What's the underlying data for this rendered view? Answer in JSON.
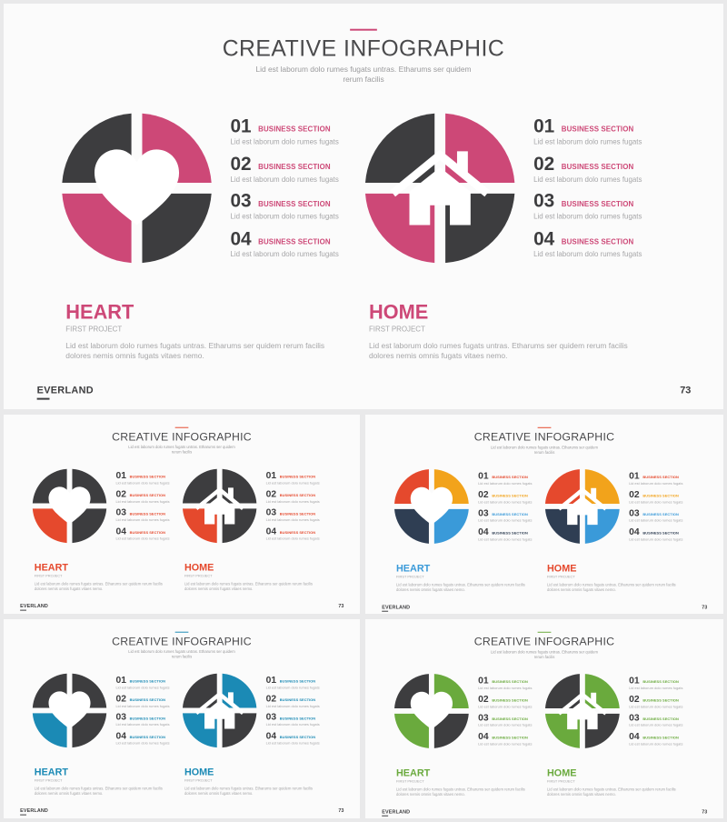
{
  "slide": {
    "title": "CREATIVE INFOGRAPHIC",
    "subtitle": "Lid est laborum dolo rumes fugats untras. Etharums ser quidem rerum facilis",
    "items": [
      {
        "num": "01",
        "label": "BUSINESS SECTION",
        "desc": "Lid est laborum dolo rumes fugats"
      },
      {
        "num": "02",
        "label": "BUSINESS SECTION",
        "desc": "Lid est laborum dolo rumes fugats"
      },
      {
        "num": "03",
        "label": "BUSINESS SECTION",
        "desc": "Lid est laborum dolo rumes fugats"
      },
      {
        "num": "04",
        "label": "BUSINESS SECTION",
        "desc": "Lid est laborum dolo rumes fugats"
      }
    ],
    "heart": {
      "title": "HEART",
      "subtitle": "FIRST PROJECT",
      "desc": "Lid est laborum dolo rumes fugats untras. Etharums ser quidem rerum facilis dolores nemis omnis fugats vitaes nemo.",
      "icon": "heart-icon"
    },
    "home": {
      "title": "HOME",
      "subtitle": "FIRST PROJECT",
      "desc": "Lid est laborum dolo rumes fugats untras. Etharums ser quidem rerum facilis dolores nemis omnis fugats vitaes nemo.",
      "icon": "house-icon"
    },
    "brand": "EVERLAND",
    "page": "73"
  },
  "variants": [
    {
      "name": "pink",
      "accent": "#cd4877",
      "heart_colors": [
        "#3d3d3f",
        "#cd4877",
        "#cd4877",
        "#3d3d3f"
      ],
      "home_colors": [
        "#3d3d3f",
        "#cd4877",
        "#cd4877",
        "#3d3d3f"
      ],
      "label_colors": [
        "#cd4877",
        "#cd4877",
        "#cd4877",
        "#cd4877"
      ],
      "heart_title_color": "#cd4877",
      "home_title_color": "#cd4877"
    },
    {
      "name": "red",
      "accent": "#e5492d",
      "heart_colors": [
        "#3d3d3f",
        "#3d3d3f",
        "#e5492d",
        "#3d3d3f"
      ],
      "home_colors": [
        "#3d3d3f",
        "#3d3d3f",
        "#e5492d",
        "#3d3d3f"
      ],
      "label_colors": [
        "#e5492d",
        "#e5492d",
        "#e5492d",
        "#e5492d"
      ],
      "heart_title_color": "#e5492d",
      "home_title_color": "#e5492d"
    },
    {
      "name": "multicolor",
      "accent": "#e5492d",
      "heart_colors": [
        "#e5492d",
        "#f2a31b",
        "#2f3e53",
        "#3a9ad9"
      ],
      "home_colors": [
        "#e5492d",
        "#f2a31b",
        "#2f3e53",
        "#3a9ad9"
      ],
      "label_colors": [
        "#e5492d",
        "#f2a31b",
        "#3a9ad9",
        "#2f3e53"
      ],
      "heart_title_color": "#3a9ad9",
      "home_title_color": "#e5492d"
    },
    {
      "name": "blue",
      "accent": "#1b8ab5",
      "heart_colors": [
        "#3d3d3f",
        "#3d3d3f",
        "#1b8ab5",
        "#3d3d3f"
      ],
      "home_colors": [
        "#3d3d3f",
        "#1b8ab5",
        "#1b8ab5",
        "#3d3d3f"
      ],
      "label_colors": [
        "#1b8ab5",
        "#1b8ab5",
        "#1b8ab5",
        "#1b8ab5"
      ],
      "heart_title_color": "#1b8ab5",
      "home_title_color": "#1b8ab5"
    },
    {
      "name": "green",
      "accent": "#6aaa3d",
      "heart_colors": [
        "#3d3d3f",
        "#6aaa3d",
        "#6aaa3d",
        "#3d3d3f"
      ],
      "home_colors": [
        "#3d3d3f",
        "#6aaa3d",
        "#6aaa3d",
        "#3d3d3f"
      ],
      "label_colors": [
        "#6aaa3d",
        "#6aaa3d",
        "#6aaa3d",
        "#6aaa3d"
      ],
      "heart_title_color": "#6aaa3d",
      "home_title_color": "#6aaa3d"
    }
  ]
}
